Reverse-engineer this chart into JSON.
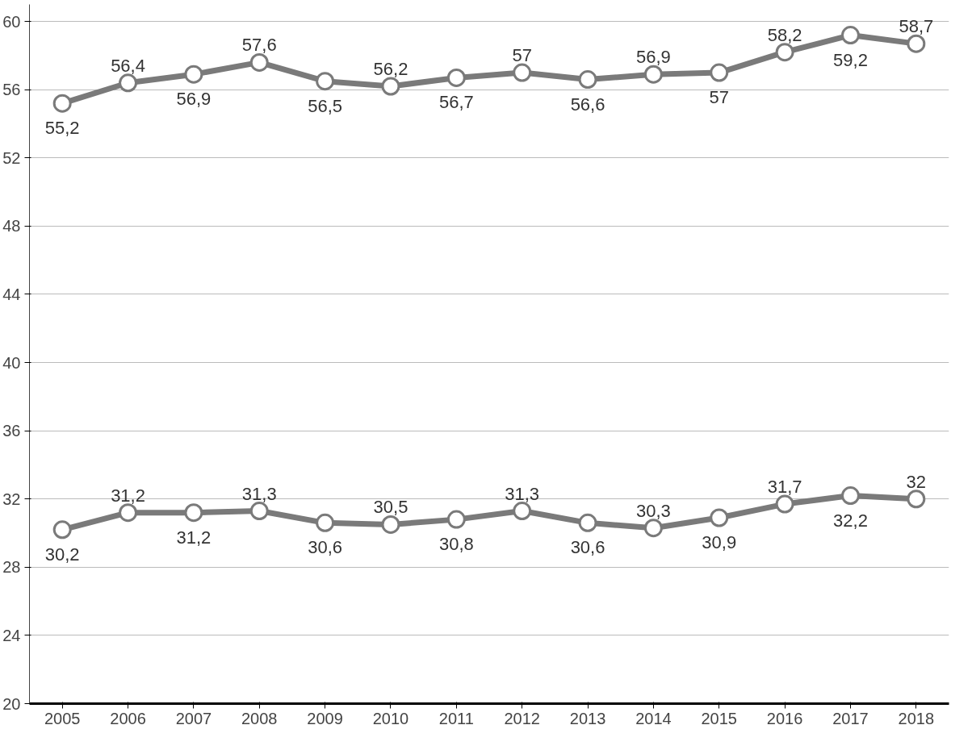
{
  "chart_data": {
    "type": "line",
    "x": [
      2005,
      2006,
      2007,
      2008,
      2009,
      2010,
      2011,
      2012,
      2013,
      2014,
      2015,
      2016,
      2017,
      2018
    ],
    "xlim": [
      2004.5,
      2018.5
    ],
    "xticks": [
      2005,
      2006,
      2007,
      2008,
      2009,
      2010,
      2011,
      2012,
      2013,
      2014,
      2015,
      2016,
      2017,
      2018
    ],
    "ylim": [
      20,
      61
    ],
    "yticks": [
      20,
      24,
      28,
      32,
      36,
      40,
      44,
      48,
      52,
      56,
      60
    ],
    "grid": "y",
    "marker": "circle",
    "line_style": "solid",
    "series": [
      {
        "color": "#7a7a7a",
        "values": [
          55.2,
          56.4,
          56.9,
          57.6,
          56.5,
          56.2,
          56.7,
          57,
          56.6,
          56.9,
          57,
          58.2,
          59.2,
          58.7
        ],
        "value_labels": [
          "55,2",
          "56,4",
          "56,9",
          "57,6",
          "56,5",
          "56,2",
          "56,7",
          "57",
          "56,6",
          "56,9",
          "57",
          "58,2",
          "59,2",
          "58,7"
        ]
      },
      {
        "color": "#7a7a7a",
        "values": [
          30.2,
          31.2,
          31.2,
          31.3,
          30.6,
          30.5,
          30.8,
          31.3,
          30.6,
          30.3,
          30.9,
          31.7,
          32.2,
          32
        ],
        "value_labels": [
          "30,2",
          "31,2",
          "31,2",
          "31,3",
          "30,6",
          "30,5",
          "30,8",
          "31,3",
          "30,6",
          "30,3",
          "30,9",
          "31,7",
          "32,2",
          "32"
        ]
      }
    ]
  }
}
